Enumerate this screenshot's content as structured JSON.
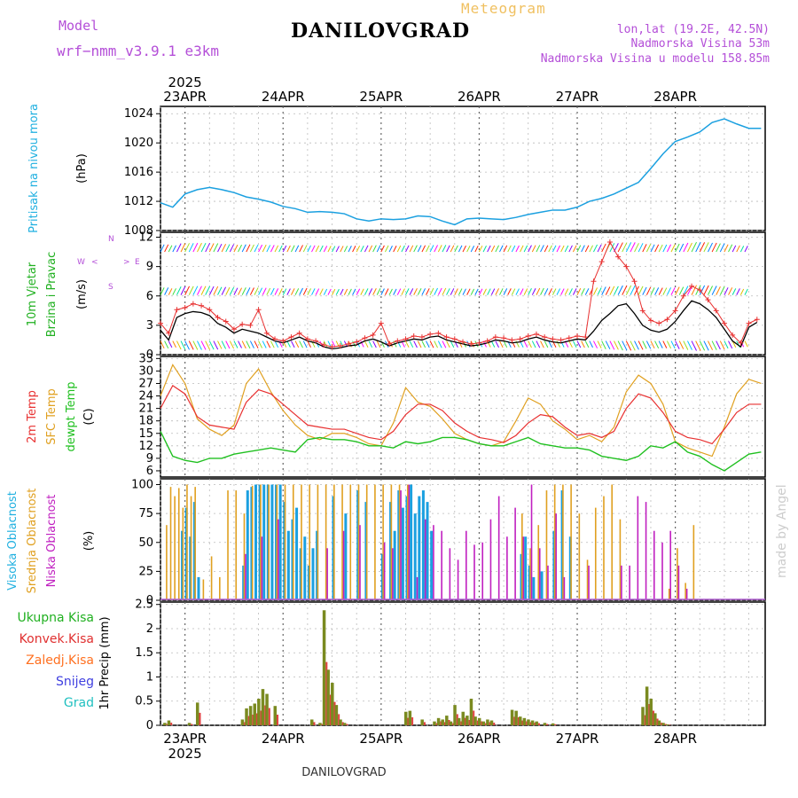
{
  "header": {
    "model_label": "Model",
    "model_name": "wrf−nmm_v3.9.1  e3km",
    "location": "DANILOVGRAD",
    "product": "Meteogram",
    "lonlat": "lon,lat (19.2E, 42.5N)",
    "elevation": "Nadmorska Visina 53m",
    "model_elevation": "Nadmorska Visina u modelu 158.85m"
  },
  "footer": {
    "location": "DANILOVGRAD",
    "credit": "made by Angel"
  },
  "time_axis": {
    "year_label": "2025",
    "dates": [
      "23APR",
      "24APR",
      "25APR",
      "26APR",
      "27APR",
      "28APR"
    ],
    "hours_start": 0,
    "hours_end": 144,
    "date_hours": [
      6,
      30,
      54,
      78,
      102,
      126
    ]
  },
  "colors": {
    "pressure": "#1ba0e0",
    "wind_scalar": "#000000",
    "gust": "#e83030",
    "t2m": "#e83030",
    "sfc": "#e0a020",
    "dewpt": "#20c020",
    "high": "#1ba0e0",
    "mid": "#e0a020",
    "low": "#c020c0",
    "precip": "#7a8a20",
    "label_cyan": "#20b0e0",
    "label_green": "#20b020",
    "label_purple": "#b44fd8"
  },
  "chart_data": [
    {
      "type": "line",
      "name": "pressure",
      "labels": [
        "Pritisak na nivou mora",
        "(hPa)"
      ],
      "ylim": [
        1008,
        1025
      ],
      "yticks": [
        1008,
        1012,
        1016,
        1020,
        1024
      ],
      "x": [
        0,
        3,
        6,
        9,
        12,
        15,
        18,
        21,
        24,
        27,
        30,
        33,
        36,
        39,
        42,
        45,
        48,
        51,
        54,
        57,
        60,
        63,
        66,
        69,
        72,
        75,
        78,
        81,
        84,
        87,
        90,
        93,
        96,
        99,
        102,
        105,
        108,
        111,
        114,
        117,
        120,
        123,
        126,
        129,
        132,
        135,
        138,
        141,
        144,
        147
      ],
      "series": [
        {
          "name": "MSLP",
          "values": [
            1011.8,
            1011.2,
            1013.0,
            1013.6,
            1013.9,
            1013.6,
            1013.2,
            1012.6,
            1012.3,
            1011.9,
            1011.3,
            1011.0,
            1010.5,
            1010.6,
            1010.5,
            1010.3,
            1009.6,
            1009.3,
            1009.6,
            1009.5,
            1009.6,
            1010.0,
            1009.9,
            1009.3,
            1008.8,
            1009.6,
            1009.7,
            1009.6,
            1009.5,
            1009.8,
            1010.2,
            1010.5,
            1010.8,
            1010.8,
            1011.2,
            1012.0,
            1012.4,
            1013.0,
            1013.8,
            1014.6,
            1016.5,
            1018.5,
            1020.2,
            1020.8,
            1021.5,
            1022.8,
            1023.3,
            1022.6,
            1022.0,
            1022.0
          ]
        }
      ]
    },
    {
      "type": "line",
      "name": "wind",
      "labels": [
        "10m Vjetar",
        "Brzina i Pravac",
        "(m/s)"
      ],
      "direction_legend": [
        "N",
        "W",
        "E",
        "S",
        "<",
        ">"
      ],
      "ylim": [
        0,
        12.5
      ],
      "yticks": [
        0,
        3,
        6,
        9,
        12
      ],
      "x": [
        0,
        2,
        4,
        6,
        8,
        10,
        12,
        14,
        16,
        18,
        20,
        22,
        24,
        26,
        28,
        30,
        32,
        34,
        36,
        38,
        40,
        42,
        44,
        46,
        48,
        50,
        52,
        54,
        56,
        58,
        60,
        62,
        64,
        66,
        68,
        70,
        72,
        74,
        76,
        78,
        80,
        82,
        84,
        86,
        88,
        90,
        92,
        94,
        96,
        98,
        100,
        102,
        104,
        106,
        108,
        110,
        112,
        114,
        116,
        118,
        120,
        122,
        124,
        126,
        128,
        130,
        132,
        134,
        136,
        138,
        140,
        142,
        144,
        146
      ],
      "series": [
        {
          "name": "speed",
          "values": [
            2.5,
            1.5,
            3.8,
            4.2,
            4.4,
            4.3,
            4.0,
            3.2,
            2.8,
            2.2,
            2.6,
            2.4,
            2.2,
            1.8,
            1.4,
            1.2,
            1.5,
            1.8,
            1.4,
            1.2,
            0.8,
            0.6,
            0.7,
            0.9,
            1.0,
            1.4,
            1.6,
            1.3,
            0.9,
            1.2,
            1.4,
            1.6,
            1.5,
            1.8,
            1.9,
            1.5,
            1.3,
            1.1,
            0.9,
            1.0,
            1.2,
            1.5,
            1.4,
            1.2,
            1.3,
            1.6,
            1.8,
            1.5,
            1.3,
            1.2,
            1.4,
            1.6,
            1.5,
            2.4,
            3.5,
            4.2,
            5.0,
            5.2,
            4.2,
            3.0,
            2.5,
            2.3,
            2.6,
            3.4,
            4.5,
            5.5,
            5.2,
            4.6,
            3.8,
            2.6,
            1.4,
            0.8,
            2.8,
            3.3
          ]
        },
        {
          "name": "gust",
          "values": [
            3.2,
            2.2,
            4.6,
            4.8,
            5.2,
            5.0,
            4.6,
            3.8,
            3.4,
            2.6,
            3.1,
            3.0,
            4.6,
            2.2,
            1.6,
            1.4,
            1.8,
            2.2,
            1.6,
            1.4,
            1.0,
            0.8,
            0.9,
            1.1,
            1.3,
            1.7,
            2.0,
            3.2,
            1.1,
            1.4,
            1.6,
            1.9,
            1.8,
            2.1,
            2.2,
            1.8,
            1.6,
            1.3,
            1.1,
            1.2,
            1.4,
            1.8,
            1.7,
            1.5,
            1.6,
            1.9,
            2.1,
            1.8,
            1.6,
            1.5,
            1.7,
            1.9,
            1.8,
            7.5,
            9.5,
            11.5,
            10.0,
            9.0,
            7.5,
            4.5,
            3.5,
            3.2,
            3.6,
            4.5,
            6.0,
            7.0,
            6.6,
            5.6,
            4.5,
            3.2,
            2.0,
            1.2,
            3.2,
            3.6
          ]
        }
      ]
    },
    {
      "type": "line",
      "name": "temperature",
      "labels": [
        "2m Temp",
        "SFC Temp",
        "dewpt Temp",
        "(C)"
      ],
      "ylim": [
        4.5,
        33.5
      ],
      "yticks": [
        6,
        9,
        12,
        15,
        18,
        21,
        24,
        27,
        30,
        33
      ],
      "x": [
        0,
        3,
        6,
        9,
        12,
        15,
        18,
        21,
        24,
        27,
        30,
        33,
        36,
        39,
        42,
        45,
        48,
        51,
        54,
        57,
        60,
        63,
        66,
        69,
        72,
        75,
        78,
        81,
        84,
        87,
        90,
        93,
        96,
        99,
        102,
        105,
        108,
        111,
        114,
        117,
        120,
        123,
        126,
        129,
        132,
        135,
        138,
        141,
        144,
        147
      ],
      "series": [
        {
          "name": "2m Temp",
          "values": [
            21.0,
            26.5,
            24.5,
            19.0,
            17.0,
            16.5,
            16.0,
            22.5,
            25.5,
            24.5,
            22.0,
            19.5,
            17.0,
            16.5,
            16.0,
            16.0,
            15.0,
            14.0,
            13.5,
            15.5,
            19.5,
            22.0,
            22.0,
            20.5,
            17.5,
            15.5,
            14.0,
            13.5,
            12.8,
            14.5,
            17.5,
            19.5,
            19.0,
            16.5,
            14.5,
            15.0,
            14.0,
            15.5,
            21.0,
            24.5,
            23.5,
            20.0,
            15.5,
            14.0,
            13.5,
            12.5,
            16.0,
            20.0,
            22.0,
            22.0
          ]
        },
        {
          "name": "SFC Temp",
          "values": [
            24.0,
            31.5,
            27.0,
            18.5,
            16.0,
            14.5,
            17.0,
            27.0,
            30.5,
            25.0,
            20.5,
            17.0,
            14.5,
            13.5,
            15.0,
            15.0,
            14.0,
            12.5,
            12.0,
            17.5,
            26.0,
            22.5,
            21.5,
            18.5,
            15.0,
            13.5,
            12.5,
            12.0,
            13.0,
            18.0,
            23.5,
            22.0,
            18.0,
            16.0,
            13.5,
            14.5,
            13.0,
            16.5,
            25.0,
            29.0,
            27.0,
            22.0,
            13.0,
            11.5,
            10.5,
            9.5,
            16.5,
            24.5,
            28.0,
            27.0
          ]
        },
        {
          "name": "dewpt Temp",
          "values": [
            15.5,
            9.5,
            8.5,
            8.0,
            9.0,
            9.0,
            10.0,
            10.5,
            11.0,
            11.5,
            11.0,
            10.5,
            13.5,
            14.0,
            13.5,
            13.5,
            13.0,
            12.0,
            12.0,
            11.5,
            13.0,
            12.5,
            13.0,
            14.0,
            14.0,
            13.5,
            12.5,
            12.0,
            12.0,
            13.0,
            14.0,
            12.5,
            12.0,
            11.5,
            11.5,
            11.0,
            9.5,
            9.0,
            8.5,
            9.5,
            12.0,
            11.5,
            13.0,
            10.5,
            9.5,
            7.5,
            6.0,
            8.0,
            10.0,
            10.5
          ]
        }
      ]
    },
    {
      "type": "bar",
      "name": "cloud",
      "labels": [
        "Visoka Oblacnost",
        "Srednja Oblacnost",
        "Niska Oblacnost",
        "(%)"
      ],
      "ylim": [
        0,
        105
      ],
      "yticks": [
        0,
        25,
        50,
        75,
        100
      ],
      "series": [
        {
          "name": "Visoka",
          "x": [
            5,
            6,
            7,
            8,
            9,
            20,
            21,
            22,
            23,
            24,
            25,
            26,
            27,
            28,
            29,
            30,
            31,
            32,
            33,
            34,
            35,
            36,
            37,
            38,
            42,
            45,
            48,
            50,
            54,
            56,
            57,
            58,
            59,
            60,
            61,
            62,
            63,
            64,
            65,
            66,
            88,
            89,
            90,
            91,
            93,
            96,
            98,
            100
          ],
          "values": [
            60,
            80,
            55,
            85,
            20,
            30,
            95,
            98,
            100,
            100,
            100,
            100,
            100,
            100,
            100,
            85,
            60,
            70,
            80,
            45,
            55,
            30,
            45,
            60,
            90,
            75,
            95,
            85,
            40,
            85,
            60,
            95,
            80,
            90,
            100,
            75,
            90,
            95,
            85,
            60,
            40,
            55,
            30,
            20,
            25,
            60,
            95,
            55
          ]
        },
        {
          "name": "Srednja",
          "x": [
            1,
            2,
            3,
            4,
            5,
            6,
            7,
            8,
            10,
            12,
            14,
            16,
            18,
            20,
            22,
            24,
            26,
            28,
            30,
            32,
            34,
            36,
            38,
            40,
            42,
            44,
            46,
            48,
            50,
            52,
            54,
            56,
            58,
            60,
            62,
            64,
            66,
            68,
            70,
            72,
            74,
            76,
            78,
            80,
            82,
            84,
            86,
            88,
            90,
            92,
            94,
            96,
            98,
            100,
            102,
            104,
            106,
            108,
            110,
            112,
            114,
            116,
            118,
            120,
            122,
            124,
            126,
            128,
            130
          ],
          "values": [
            65,
            98,
            90,
            97,
            80,
            100,
            90,
            98,
            18,
            38,
            20,
            95,
            95,
            75,
            99,
            100,
            100,
            100,
            100,
            100,
            100,
            100,
            100,
            100,
            100,
            100,
            100,
            100,
            100,
            100,
            100,
            100,
            100,
            100,
            0,
            0,
            0,
            0,
            0,
            0,
            0,
            0,
            0,
            0,
            0,
            0,
            0,
            75,
            45,
            65,
            95,
            100,
            100,
            100,
            75,
            35,
            80,
            90,
            100,
            70,
            0,
            0,
            0,
            0,
            0,
            10,
            45,
            15,
            65
          ]
        },
        {
          "name": "Niska",
          "x": [
            20,
            24,
            28,
            40,
            44,
            48,
            54,
            56,
            58,
            60,
            62,
            64,
            66,
            68,
            70,
            72,
            74,
            76,
            78,
            80,
            82,
            84,
            86,
            88,
            90,
            92,
            94,
            96,
            98,
            104,
            112,
            114,
            116,
            118,
            120,
            122,
            124,
            126,
            128
          ],
          "values": [
            40,
            55,
            70,
            45,
            60,
            65,
            50,
            45,
            95,
            100,
            20,
            70,
            65,
            60,
            45,
            35,
            60,
            48,
            50,
            70,
            90,
            55,
            80,
            55,
            100,
            45,
            30,
            75,
            20,
            30,
            30,
            30,
            90,
            85,
            60,
            50,
            60,
            30,
            10
          ]
        }
      ]
    },
    {
      "type": "bar",
      "name": "precipitation",
      "labels": [
        "Ukupna Kisa",
        "Konvek.Kisa",
        "Zaledj.Kisa",
        "Snijeg",
        "Grad",
        "1hr Precip (mm)"
      ],
      "ylim": [
        0,
        2.55
      ],
      "yticks": [
        0,
        0.5,
        1,
        1.5,
        2,
        2.5
      ],
      "x": [
        1,
        2,
        7,
        9,
        20,
        21,
        22,
        23,
        24,
        25,
        26,
        28,
        37,
        39,
        40,
        41,
        42,
        43,
        44,
        45,
        60,
        61,
        64,
        67,
        68,
        69,
        70,
        71,
        72,
        73,
        74,
        75,
        76,
        77,
        78,
        79,
        80,
        81,
        86,
        87,
        88,
        89,
        90,
        91,
        92,
        94,
        96,
        118,
        119,
        120,
        121,
        122,
        123,
        124
      ],
      "values": [
        0.05,
        0.1,
        0.05,
        0.47,
        0.12,
        0.35,
        0.4,
        0.45,
        0.55,
        0.75,
        0.65,
        0.4,
        0.12,
        0.05,
        2.38,
        1.15,
        0.88,
        0.42,
        0.12,
        0.05,
        0.28,
        0.3,
        0.12,
        0.08,
        0.15,
        0.12,
        0.2,
        0.08,
        0.42,
        0.15,
        0.28,
        0.2,
        0.55,
        0.18,
        0.15,
        0.08,
        0.12,
        0.1,
        0.32,
        0.3,
        0.18,
        0.15,
        0.12,
        0.1,
        0.08,
        0.05,
        0.04,
        0.38,
        0.8,
        0.55,
        0.25,
        0.1,
        0.05,
        0.02
      ]
    }
  ]
}
